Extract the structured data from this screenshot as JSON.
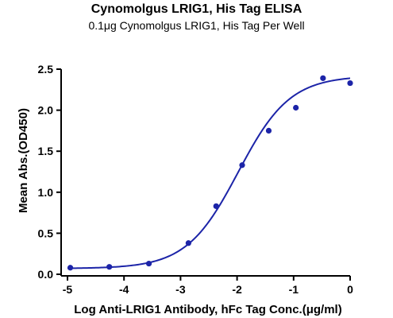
{
  "chart_data": {
    "type": "scatter",
    "title": "Cynomolgus LRIG1, His Tag ELISA",
    "subtitle": "0.1μg Cynomolgus LRIG1, His Tag Per Well",
    "xlabel": "Log Anti-LRIG1 Antibody, hFc Tag Conc.(μg/ml)",
    "ylabel": "Mean Abs.(OD450)",
    "xlim": [
      -5,
      0
    ],
    "ylim": [
      0,
      2.5
    ],
    "xticks": [
      -5,
      -4,
      -3,
      -2,
      -1,
      0
    ],
    "xtick_labels": [
      "-5",
      "-4",
      "-3",
      "-2",
      "-1",
      "0"
    ],
    "yticks": [
      0.0,
      0.5,
      1.0,
      1.5,
      2.0,
      2.5
    ],
    "ytick_labels": [
      "0.0",
      "0.5",
      "1.0",
      "1.5",
      "2.0",
      "2.5"
    ],
    "grid": false,
    "color": "#1c24a8",
    "series": [
      {
        "points": [
          {
            "x": -4.95,
            "y": 0.08
          },
          {
            "x": -4.26,
            "y": 0.09
          },
          {
            "x": -3.56,
            "y": 0.13
          },
          {
            "x": -2.86,
            "y": 0.38
          },
          {
            "x": -2.37,
            "y": 0.83
          },
          {
            "x": -1.91,
            "y": 1.33
          },
          {
            "x": -1.44,
            "y": 1.75
          },
          {
            "x": -0.96,
            "y": 2.03
          },
          {
            "x": -0.48,
            "y": 2.39
          },
          {
            "x": 0.0,
            "y": 2.33
          }
        ],
        "fit_curve": {
          "model": "4PL",
          "bottom": 0.07,
          "top": 2.42,
          "ec50_log": -1.98,
          "hill": 0.95
        }
      }
    ]
  }
}
